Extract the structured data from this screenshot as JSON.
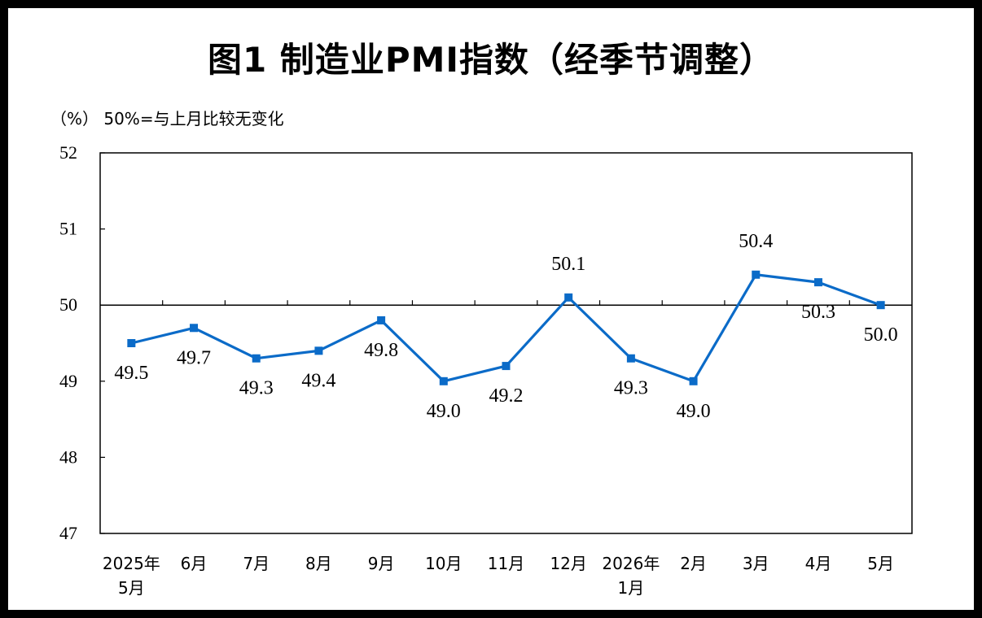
{
  "title": "图1  制造业PMI指数（经季节调整）",
  "unit_label": "（%）  50%=与上月比较无变化",
  "colors": {
    "line": "#0b6bc8",
    "axis": "#000000",
    "background": "#ffffff",
    "frame": "#000000"
  },
  "chart_data": {
    "type": "line",
    "categories": [
      "2025年\n5月",
      "6月",
      "7月",
      "8月",
      "9月",
      "10月",
      "11月",
      "12月",
      "2026年\n1月",
      "2月",
      "3月",
      "4月",
      "5月"
    ],
    "series": [
      {
        "values": [
          49.5,
          49.7,
          49.3,
          49.4,
          49.8,
          49.0,
          49.2,
          50.1,
          49.3,
          49.0,
          50.4,
          50.3,
          50.0
        ]
      }
    ],
    "data_labels": [
      "49.5",
      "49.7",
      "49.3",
      "49.4",
      "49.8",
      "49.0",
      "49.2",
      "50.1",
      "49.3",
      "49.0",
      "50.4",
      "50.3",
      "50.0"
    ],
    "yticks": [
      "47",
      "48",
      "49",
      "50",
      "51",
      "52"
    ],
    "ylim": [
      47,
      52
    ],
    "reference_line": 50,
    "grid": false,
    "markers": "square"
  }
}
